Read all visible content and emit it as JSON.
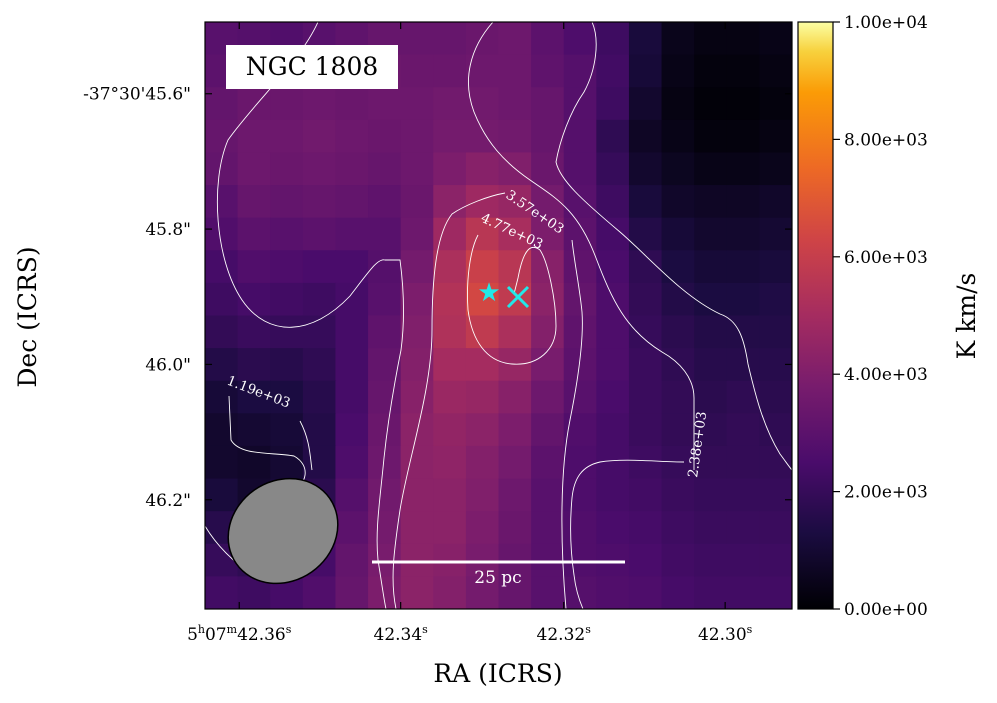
{
  "chart_data": {
    "type": "heatmap",
    "title": "NGC 1808",
    "xlabel": "RA (ICRS)",
    "ylabel": "Dec (ICRS)",
    "colorbar": {
      "label": "K km/s",
      "min": 0,
      "max": 10000,
      "colormap": "inferno",
      "ticks": [
        "0.00e+00",
        "2.00e+03",
        "4.00e+03",
        "6.00e+03",
        "8.00e+03",
        "1.00e+04"
      ],
      "tick_values": [
        0,
        2000,
        4000,
        6000,
        8000,
        10000
      ]
    },
    "x_ticks": [
      {
        "h": "5",
        "m": "07",
        "s": "42.36",
        "prefix_shown": true,
        "col": 1.05
      },
      {
        "s": "42.34",
        "prefix_shown": false,
        "col": 6.0
      },
      {
        "s": "42.32",
        "prefix_shown": false,
        "col": 11.0
      },
      {
        "s": "42.30",
        "prefix_shown": false,
        "col": 15.95
      }
    ],
    "y_ticks": [
      {
        "label": "-37°30'45.6\"",
        "row": 2.2
      },
      {
        "label": "45.8\"",
        "row": 6.35
      },
      {
        "label": "46.0\"",
        "row": 10.5
      },
      {
        "label": "46.2\"",
        "row": 14.65
      }
    ],
    "grid": false,
    "contour_levels": [
      "1.19e+03",
      "2.38e+03",
      "3.57e+03",
      "4.77e+03"
    ],
    "scale_bar": {
      "label": "25 pc"
    },
    "markers": [
      {
        "name": "star",
        "symbol": "★",
        "color": "#22e8e8"
      },
      {
        "name": "cross",
        "symbol": "✕",
        "color": "#22e8e8"
      }
    ],
    "beam": {
      "label": "beam",
      "fill": "#888888"
    },
    "grid_size": [
      18,
      18
    ],
    "intensity": [
      [
        2900,
        2800,
        2700,
        2900,
        3100,
        3300,
        3300,
        3300,
        3400,
        3500,
        3000,
        2600,
        2200,
        1200,
        500,
        300,
        300,
        400
      ],
      [
        3000,
        3100,
        3100,
        3200,
        3300,
        3500,
        3400,
        3400,
        3500,
        3500,
        3100,
        2800,
        2300,
        1100,
        400,
        200,
        200,
        300
      ],
      [
        3200,
        3400,
        3400,
        3500,
        3400,
        3500,
        3500,
        3600,
        3600,
        3500,
        3300,
        2800,
        2200,
        900,
        300,
        100,
        100,
        200
      ],
      [
        3300,
        3500,
        3500,
        3600,
        3500,
        3400,
        3500,
        3700,
        3700,
        3600,
        3300,
        2800,
        1800,
        700,
        400,
        200,
        200,
        300
      ],
      [
        3200,
        3500,
        3400,
        3500,
        3400,
        3300,
        3500,
        3900,
        4200,
        4000,
        3400,
        2800,
        2000,
        900,
        600,
        400,
        400,
        500
      ],
      [
        2900,
        3300,
        3200,
        3300,
        3200,
        3100,
        3400,
        4300,
        4800,
        4600,
        3700,
        2900,
        2200,
        1200,
        800,
        700,
        700,
        800
      ],
      [
        2700,
        3000,
        2900,
        3000,
        2900,
        2900,
        3500,
        4800,
        5600,
        5100,
        3900,
        3000,
        2400,
        1500,
        1100,
        900,
        900,
        1000
      ],
      [
        2400,
        2700,
        2600,
        2500,
        2500,
        2800,
        3700,
        5200,
        6100,
        5600,
        4200,
        3100,
        2500,
        1800,
        1300,
        1100,
        1100,
        1200
      ],
      [
        2200,
        2400,
        2300,
        2200,
        2400,
        2900,
        3900,
        5400,
        6400,
        5800,
        4300,
        3200,
        2600,
        1900,
        1500,
        1300,
        1300,
        1400
      ],
      [
        1900,
        2100,
        2000,
        2000,
        2400,
        3100,
        4000,
        5300,
        5800,
        5200,
        4100,
        3100,
        2600,
        2000,
        1700,
        1500,
        1500,
        1500
      ],
      [
        1500,
        1700,
        1600,
        1800,
        2400,
        3200,
        4100,
        5000,
        5000,
        4600,
        3800,
        3000,
        2600,
        2100,
        1800,
        1600,
        1600,
        1600
      ],
      [
        1100,
        1300,
        1300,
        1600,
        2400,
        3300,
        4200,
        4700,
        4600,
        4200,
        3500,
        2900,
        2500,
        2100,
        1900,
        1700,
        1800,
        1700
      ],
      [
        900,
        1000,
        1100,
        1500,
        2500,
        3400,
        4300,
        4500,
        4300,
        3900,
        3200,
        2700,
        2400,
        2100,
        1900,
        1800,
        1900,
        1800
      ],
      [
        900,
        800,
        1000,
        1500,
        2600,
        3500,
        4300,
        4400,
        4100,
        3700,
        3000,
        2600,
        2400,
        2200,
        2000,
        1900,
        1900,
        1900
      ],
      [
        1200,
        900,
        1100,
        1700,
        2800,
        3600,
        4300,
        4300,
        4000,
        3500,
        2900,
        2600,
        2400,
        2300,
        2100,
        2000,
        2000,
        2000
      ],
      [
        1600,
        1300,
        1500,
        2000,
        3000,
        3700,
        4300,
        4300,
        3900,
        3400,
        2900,
        2700,
        2500,
        2400,
        2200,
        2100,
        2100,
        2100
      ],
      [
        2000,
        1800,
        2000,
        2400,
        3200,
        3800,
        4300,
        4200,
        3800,
        3300,
        2900,
        2700,
        2600,
        2500,
        2300,
        2200,
        2200,
        2200
      ],
      [
        2300,
        2200,
        2400,
        2700,
        3300,
        3900,
        4300,
        4100,
        3700,
        3300,
        2900,
        2800,
        2700,
        2600,
        2400,
        2300,
        2300,
        2300
      ]
    ]
  }
}
